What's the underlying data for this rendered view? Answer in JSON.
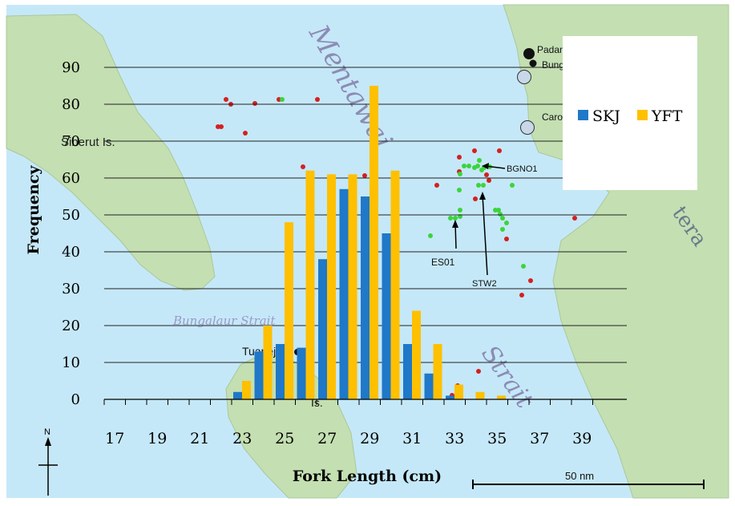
{
  "map": {
    "labels": {
      "sea_name": "Mentawai",
      "strait_name": "Strait",
      "island_name": "Siberut Is.",
      "sumatra_fragment": "tera",
      "bungalaur_strait": "Bungalaur Strait",
      "town_tua": "Tuapejat",
      "sipora_top": "Si",
      "sipora_bottom": "Is.",
      "town_padang": "Padang",
      "town_bungus": "Bungus",
      "town_carocok": "Carocok"
    },
    "stations": {
      "bgno1": "BGNO1",
      "es01": "ES01",
      "stw2": "STW2"
    },
    "north_label": "N",
    "scale_label": "50 nm",
    "colors": {
      "sea": "#c5e8f8",
      "land": "#c4dfb2",
      "dot_red": "#d42020",
      "dot_green": "#3cd43c"
    }
  },
  "chart_data": {
    "type": "bar",
    "xlabel": "Fork Length (cm)",
    "ylabel": "Frequency",
    "ylim": [
      0,
      90
    ],
    "yticks": [
      0,
      10,
      20,
      30,
      40,
      50,
      60,
      70,
      80,
      90
    ],
    "categories": [
      17,
      18,
      19,
      20,
      21,
      22,
      23,
      24,
      25,
      26,
      27,
      28,
      29,
      30,
      31,
      32,
      33,
      34,
      35,
      36,
      37,
      38,
      39,
      40
    ],
    "xtick_labels": [
      "17",
      "19",
      "21",
      "23",
      "25",
      "27",
      "29",
      "31",
      "33",
      "35",
      "37",
      "39"
    ],
    "series": [
      {
        "name": "SKJ",
        "color": "#1f78c8",
        "values": [
          0,
          0,
          0,
          0,
          0,
          0,
          2,
          13,
          15,
          14,
          38,
          57,
          55,
          45,
          15,
          7,
          1,
          0,
          0,
          0,
          0,
          0,
          0,
          0
        ]
      },
      {
        "name": "YFT",
        "color": "#ffc000",
        "values": [
          0,
          0,
          0,
          0,
          0,
          0,
          5,
          20,
          48,
          62,
          61,
          61,
          85,
          62,
          24,
          15,
          4,
          2,
          1,
          0,
          0,
          0,
          0,
          0
        ]
      }
    ],
    "grid": true,
    "legend_position": "top-right"
  }
}
